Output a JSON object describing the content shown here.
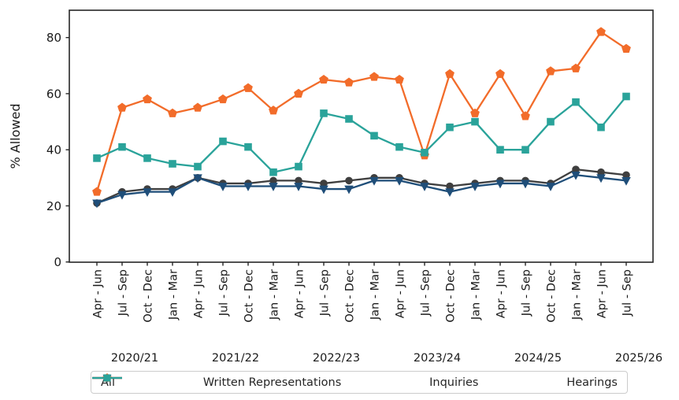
{
  "figure": {
    "background": "#ffffff",
    "axis_color": "#262626",
    "tick_label_color": "#1a1a1a"
  },
  "chart_data": {
    "type": "line",
    "title": "",
    "xlabel": "",
    "ylabel": "% Allowed",
    "ylim": [
      0,
      90
    ],
    "yticks": [
      0,
      20,
      40,
      60,
      80
    ],
    "grid": false,
    "legend_position": "bottom",
    "categories": [
      "Apr - Jun",
      "Jul - Sep",
      "Oct - Dec",
      "Jan - Mar",
      "Apr - Jun",
      "Jul - Sep",
      "Oct - Dec",
      "Jan - Mar",
      "Apr - Jun",
      "Jul - Sep",
      "Oct - Dec",
      "Jan - Mar",
      "Apr - Jun",
      "Jul - Sep",
      "Oct - Dec",
      "Jan - Mar",
      "Apr - Jun",
      "Jul - Sep",
      "Oct - Dec",
      "Jan - Mar",
      "Apr - Jun",
      "Jul - Sep"
    ],
    "year_groups": [
      {
        "label": "2020/21",
        "start_index": 0
      },
      {
        "label": "2021/22",
        "start_index": 4
      },
      {
        "label": "2022/23",
        "start_index": 8
      },
      {
        "label": "2023/24",
        "start_index": 12
      },
      {
        "label": "2024/25",
        "start_index": 16
      },
      {
        "label": "2025/26",
        "start_index": 20
      }
    ],
    "series": [
      {
        "name": "All",
        "marker": "circle",
        "color": "#3f3f3f",
        "values": [
          21,
          25,
          26,
          26,
          30,
          28,
          28,
          29,
          29,
          28,
          29,
          30,
          30,
          28,
          27,
          28,
          29,
          29,
          28,
          33,
          32,
          31
        ]
      },
      {
        "name": "Written Representations",
        "marker": "triangle-down",
        "color": "#1f4e79",
        "values": [
          21,
          24,
          25,
          25,
          30,
          27,
          27,
          27,
          27,
          26,
          26,
          29,
          29,
          27,
          25,
          27,
          28,
          28,
          27,
          31,
          30,
          29
        ]
      },
      {
        "name": "Inquiries",
        "marker": "pentagon",
        "color": "#f26c2a",
        "values": [
          25,
          55,
          58,
          53,
          55,
          58,
          62,
          54,
          60,
          65,
          64,
          66,
          65,
          38,
          67,
          53,
          67,
          52,
          68,
          69,
          82,
          76
        ]
      },
      {
        "name": "Hearings",
        "marker": "square",
        "color": "#2aa39a",
        "values": [
          37,
          41,
          37,
          35,
          34,
          43,
          41,
          32,
          34,
          53,
          51,
          45,
          41,
          39,
          48,
          50,
          40,
          40,
          50,
          57,
          48,
          59
        ]
      }
    ]
  }
}
